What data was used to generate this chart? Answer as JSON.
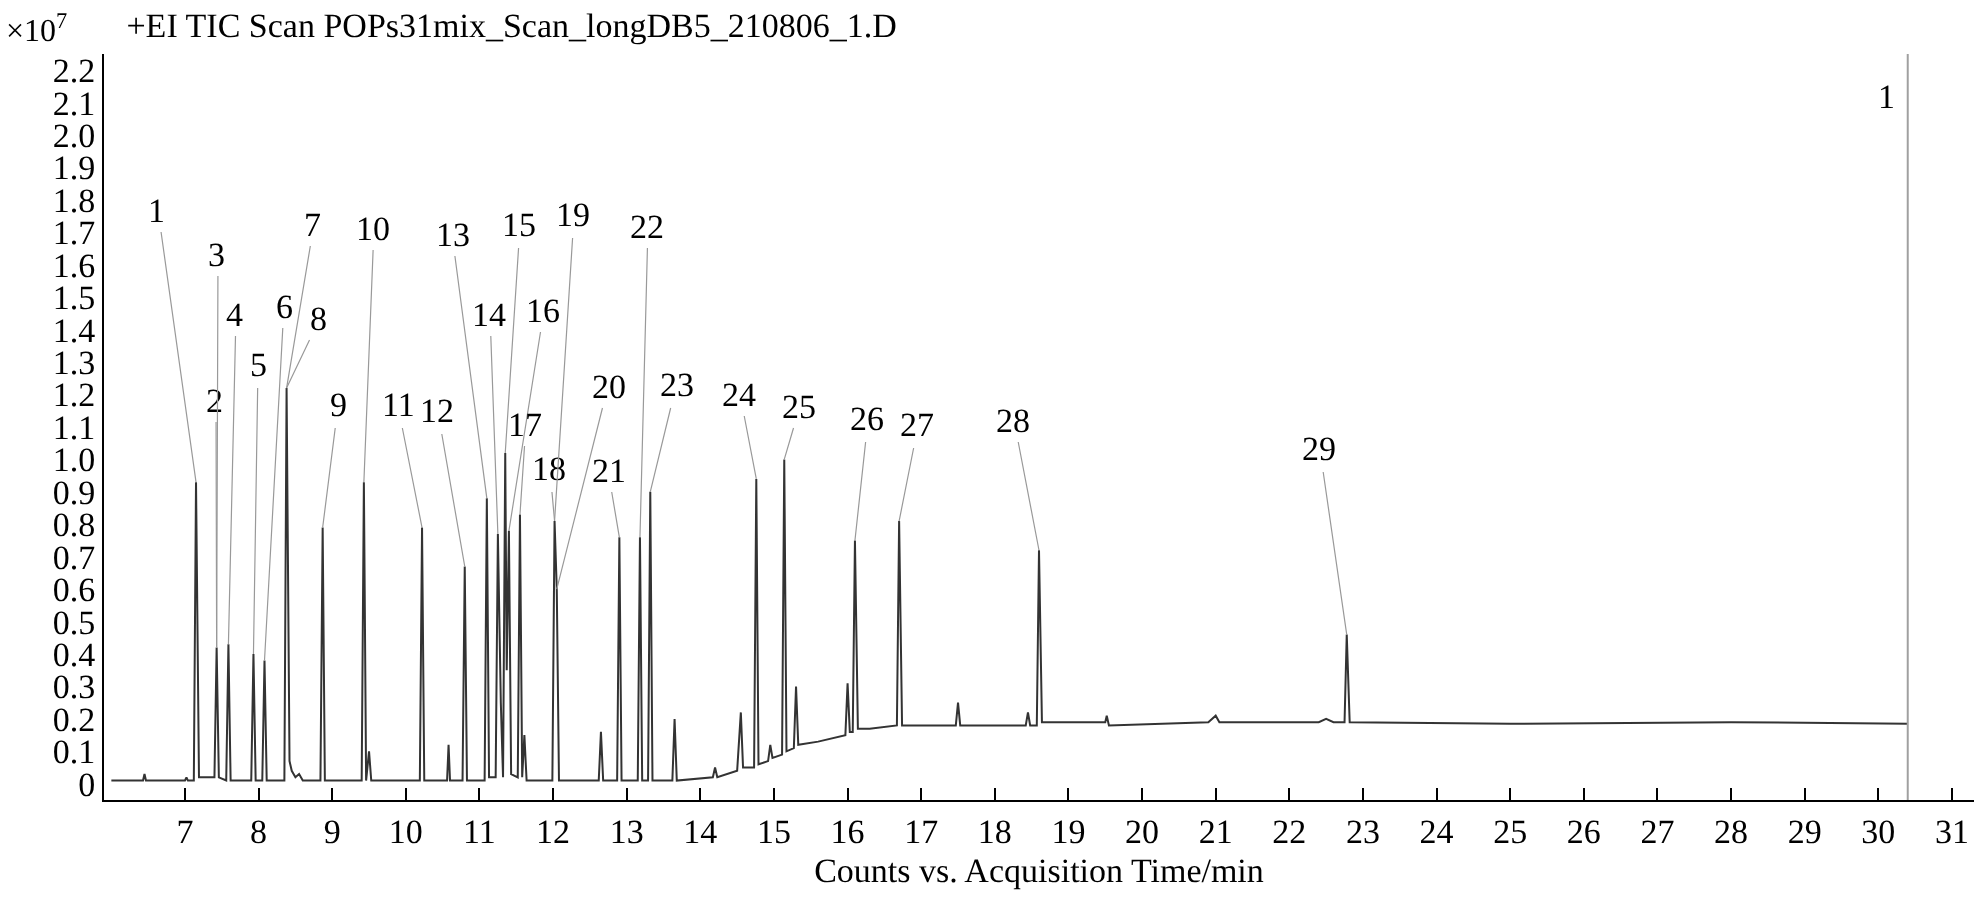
{
  "chart_data": {
    "type": "line",
    "title": "+EI TIC Scan POPs31mix_Scan_longDB5_210806_1.D",
    "xlabel": "Counts vs. Acquisition Time/min",
    "series": [
      {
        "color": "#333333",
        "x": [
          6.0,
          6.43,
          6.45,
          6.47,
          7.0,
          7.02,
          7.04,
          7.12,
          7.15,
          7.19,
          7.4,
          7.43,
          7.46,
          7.56,
          7.59,
          7.62,
          7.9,
          7.93,
          7.96,
          8.05,
          8.08,
          8.11,
          8.35,
          8.38,
          8.42,
          8.45,
          8.5,
          8.55,
          8.6,
          8.84,
          8.87,
          8.9,
          9.4,
          9.43,
          9.46,
          9.5,
          9.53,
          10.19,
          10.22,
          10.25,
          10.56,
          10.58,
          10.6,
          10.77,
          10.8,
          10.83,
          11.07,
          11.1,
          11.13,
          11.22,
          11.25,
          11.29,
          11.32,
          11.35,
          11.37,
          11.4,
          11.43,
          11.52,
          11.55,
          11.58,
          11.61,
          11.64,
          11.99,
          12.02,
          12.05,
          12.08,
          12.62,
          12.65,
          12.68,
          12.87,
          12.9,
          12.93,
          13.15,
          13.18,
          13.21,
          13.29,
          13.32,
          13.35,
          13.62,
          13.65,
          13.68,
          14.17,
          14.2,
          14.23,
          14.5,
          14.55,
          14.58,
          14.73,
          14.76,
          14.79,
          14.92,
          14.95,
          14.98,
          15.11,
          15.14,
          15.17,
          15.27,
          15.3,
          15.33,
          15.6,
          15.97,
          16.0,
          16.03,
          16.07,
          16.1,
          16.14,
          16.3,
          16.67,
          16.7,
          16.74,
          17.47,
          17.5,
          17.53,
          18.42,
          18.45,
          18.48,
          18.57,
          18.6,
          18.64,
          19.5,
          19.52,
          19.55,
          20.9,
          21.0,
          21.05,
          22.4,
          22.5,
          22.6,
          22.75,
          22.78,
          22.82,
          25.0,
          28.0,
          30.4
        ],
        "values": [
          0.01,
          0.01,
          0.03,
          0.01,
          0.01,
          0.02,
          0.01,
          0.01,
          0.93,
          0.02,
          0.02,
          0.42,
          0.02,
          0.01,
          0.43,
          0.01,
          0.01,
          0.4,
          0.01,
          0.01,
          0.38,
          0.01,
          0.01,
          1.22,
          0.07,
          0.04,
          0.02,
          0.03,
          0.01,
          0.01,
          0.79,
          0.01,
          0.01,
          0.93,
          0.01,
          0.1,
          0.01,
          0.01,
          0.79,
          0.01,
          0.01,
          0.12,
          0.01,
          0.01,
          0.67,
          0.01,
          0.01,
          0.88,
          0.02,
          0.02,
          0.77,
          0.25,
          0.02,
          1.02,
          0.35,
          0.78,
          0.03,
          0.02,
          0.83,
          0.02,
          0.15,
          0.01,
          0.01,
          0.81,
          0.6,
          0.01,
          0.01,
          0.16,
          0.01,
          0.01,
          0.76,
          0.01,
          0.01,
          0.76,
          0.01,
          0.01,
          0.9,
          0.01,
          0.01,
          0.2,
          0.01,
          0.02,
          0.05,
          0.02,
          0.04,
          0.22,
          0.05,
          0.05,
          0.94,
          0.06,
          0.07,
          0.12,
          0.08,
          0.09,
          1.0,
          0.1,
          0.11,
          0.3,
          0.12,
          0.13,
          0.15,
          0.31,
          0.16,
          0.16,
          0.75,
          0.17,
          0.17,
          0.18,
          0.81,
          0.18,
          0.18,
          0.25,
          0.18,
          0.18,
          0.22,
          0.18,
          0.18,
          0.72,
          0.19,
          0.19,
          0.21,
          0.18,
          0.19,
          0.21,
          0.19,
          0.19,
          0.2,
          0.19,
          0.19,
          0.46,
          0.19,
          0.185,
          0.19,
          0.185
        ]
      }
    ],
    "xlim": [
      5.9,
      31.3
    ],
    "xticks": [
      7,
      8,
      9,
      10,
      11,
      12,
      13,
      14,
      15,
      16,
      17,
      18,
      19,
      20,
      21,
      22,
      23,
      24,
      25,
      26,
      27,
      28,
      29,
      30,
      31
    ],
    "ylim": [
      -0.05,
      2.25
    ],
    "yticks": [
      0,
      0.1,
      0.2,
      0.3,
      0.4,
      0.5,
      0.6,
      0.7,
      0.8,
      0.9,
      {
        "value": 1.0,
        "label": "1.0"
      },
      1.1,
      1.2,
      1.3,
      1.4,
      1.5,
      1.6,
      1.7,
      1.8,
      1.9,
      {
        "value": 2.0,
        "label": "2.0"
      },
      2.1,
      2.2
    ],
    "ref_lines": [
      {
        "axis": "x",
        "value": 30.4,
        "color": "#a0a0a0"
      }
    ],
    "annotations": [
      "×10$^{7}$",
      {
        "text": "1",
        "x": 7.15,
        "y": 0.93
      },
      {
        "text": "2",
        "x": 7.43,
        "y": 0.42
      },
      {
        "text": "3",
        "x": 7.43,
        "y": 0.42
      },
      {
        "text": "4",
        "x": 7.59,
        "y": 0.43
      },
      {
        "text": "5",
        "x": 7.93,
        "y": 0.4
      },
      {
        "text": "6",
        "x": 8.08,
        "y": 0.38
      },
      {
        "text": "7",
        "x": 8.38,
        "y": 1.22
      },
      {
        "text": "8",
        "x": 8.38,
        "y": 1.22
      },
      {
        "text": "9",
        "x": 8.87,
        "y": 0.79
      },
      {
        "text": "10",
        "x": 9.43,
        "y": 0.93
      },
      {
        "text": "11",
        "x": 10.22,
        "y": 0.79
      },
      {
        "text": "12",
        "x": 10.8,
        "y": 0.67
      },
      {
        "text": "13",
        "x": 11.1,
        "y": 0.88
      },
      {
        "text": "14",
        "x": 11.25,
        "y": 0.77
      },
      {
        "text": "15",
        "x": 11.35,
        "y": 1.02
      },
      {
        "text": "16",
        "x": 11.4,
        "y": 0.78
      },
      {
        "text": "17",
        "x": 11.55,
        "y": 0.83
      },
      {
        "text": "18",
        "x": 12.02,
        "y": 0.81
      },
      {
        "text": "19",
        "x": 12.02,
        "y": 0.81
      },
      {
        "text": "20",
        "x": 12.05,
        "y": 0.6
      },
      {
        "text": "21",
        "x": 12.9,
        "y": 0.76
      },
      {
        "text": "22",
        "x": 13.18,
        "y": 0.76
      },
      {
        "text": "23",
        "x": 13.32,
        "y": 0.9
      },
      {
        "text": "24",
        "x": 14.76,
        "y": 0.94
      },
      {
        "text": "25",
        "x": 15.14,
        "y": 1.0
      },
      {
        "text": "26",
        "x": 16.1,
        "y": 0.75
      },
      {
        "text": "27",
        "x": 16.7,
        "y": 0.81
      },
      {
        "text": "28",
        "x": 18.6,
        "y": 0.72
      },
      {
        "text": "29",
        "x": 22.78,
        "y": 0.46
      },
      {
        "text": "1",
        "x": 30.4,
        "y": 2.12
      }
    ],
    "marker": "none",
    "line_style": "solid"
  }
}
